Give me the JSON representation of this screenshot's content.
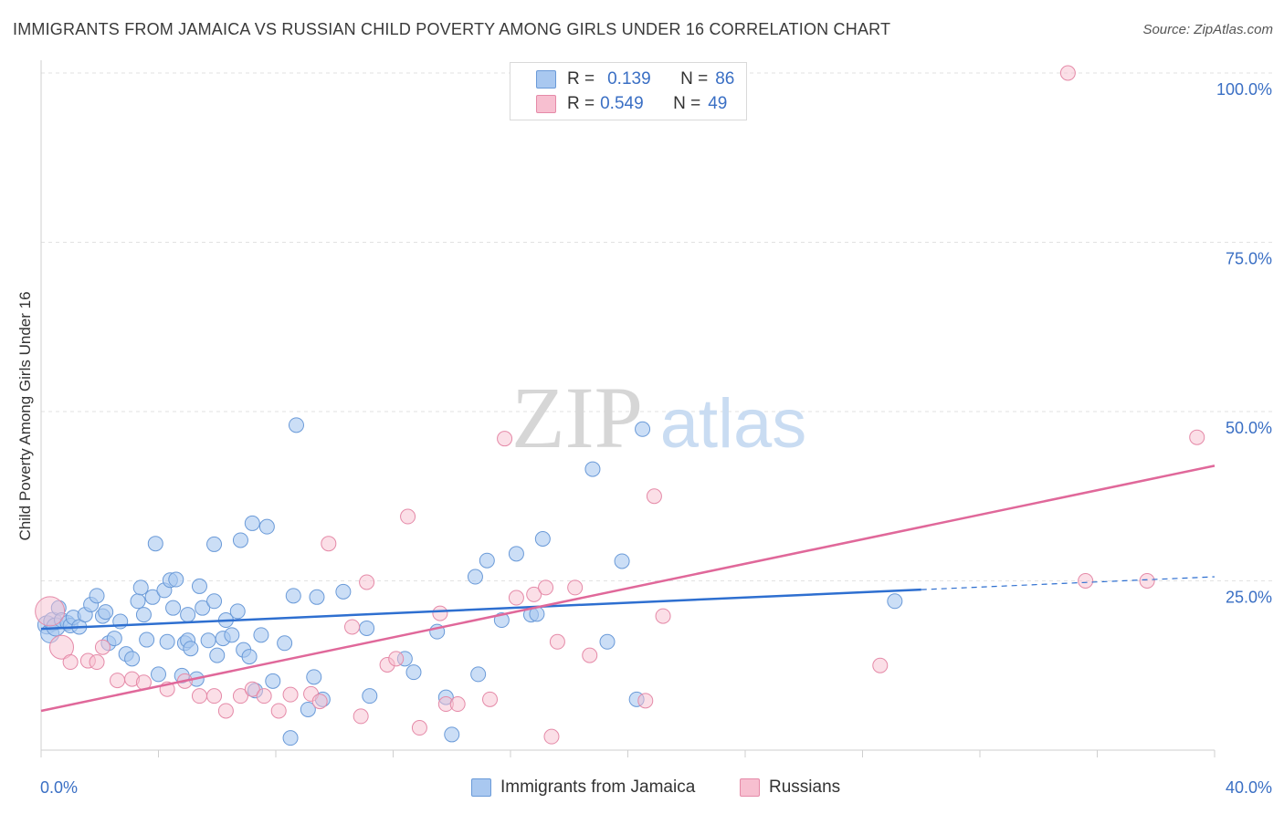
{
  "header": {
    "title": "IMMIGRANTS FROM JAMAICA VS RUSSIAN CHILD POVERTY AMONG GIRLS UNDER 16 CORRELATION CHART",
    "source": "Source: ZipAtlas.com"
  },
  "watermark": {
    "part1": "ZIP",
    "part2": "atlas"
  },
  "legend": {
    "row1": {
      "r_label": "R =",
      "r_value": "0.139",
      "n_label": "N =",
      "n_value": "86"
    },
    "row2": {
      "r_label": "R =",
      "r_value": "0.549",
      "n_label": "N =",
      "n_value": "49"
    }
  },
  "colors": {
    "blue_fill": "#a9c8f0",
    "blue_stroke": "#6a9ad8",
    "blue_line": "#2e6fd0",
    "pink_fill": "#f7bfd0",
    "pink_stroke": "#e58aa8",
    "pink_line": "#e0689a",
    "tick_text": "#3a6fc4",
    "grid": "#e2e2e2"
  },
  "chart_data": {
    "type": "scatter",
    "title": "IMMIGRANTS FROM JAMAICA VS RUSSIAN CHILD POVERTY AMONG GIRLS UNDER 16 CORRELATION CHART",
    "xlabel": "",
    "ylabel": "Child Poverty Among Girls Under 16",
    "xlim": [
      0,
      40
    ],
    "ylim": [
      0,
      100
    ],
    "x_tick_labels": [
      "0.0%",
      "40.0%"
    ],
    "y_ticks": [
      25,
      50,
      75,
      100
    ],
    "y_tick_labels": [
      "25.0%",
      "50.0%",
      "75.0%",
      "100.0%"
    ],
    "grid": true,
    "legend_position": "top-center",
    "series": [
      {
        "name": "Immigrants from Jamaica",
        "color": "#a9c8f0",
        "trend": {
          "x": [
            0,
            30
          ],
          "y": [
            17.9,
            23.7
          ],
          "dashed_to": {
            "x": 40,
            "y": 25.6
          }
        },
        "points": [
          [
            0.2,
            18.5
          ],
          [
            0.3,
            17.2
          ],
          [
            0.4,
            19.0
          ],
          [
            0.5,
            18.2
          ],
          [
            0.6,
            21.0
          ],
          [
            0.7,
            19.2
          ],
          [
            0.9,
            18.8
          ],
          [
            1.0,
            18.4
          ],
          [
            1.1,
            19.6
          ],
          [
            1.3,
            18.2
          ],
          [
            1.5,
            20.0
          ],
          [
            1.7,
            21.5
          ],
          [
            1.9,
            22.8
          ],
          [
            2.1,
            19.8
          ],
          [
            2.2,
            20.4
          ],
          [
            2.3,
            15.8
          ],
          [
            2.5,
            16.5
          ],
          [
            2.7,
            19.0
          ],
          [
            2.9,
            14.2
          ],
          [
            3.1,
            13.5
          ],
          [
            3.3,
            22.0
          ],
          [
            3.4,
            24.0
          ],
          [
            3.5,
            20.0
          ],
          [
            3.6,
            16.3
          ],
          [
            3.8,
            22.6
          ],
          [
            3.9,
            30.5
          ],
          [
            4.0,
            11.2
          ],
          [
            4.2,
            23.6
          ],
          [
            4.3,
            16.0
          ],
          [
            4.4,
            25.1
          ],
          [
            4.5,
            21.0
          ],
          [
            4.6,
            25.2
          ],
          [
            4.8,
            11.0
          ],
          [
            4.9,
            15.8
          ],
          [
            5.0,
            16.2
          ],
          [
            5.1,
            15.0
          ],
          [
            5.3,
            10.5
          ],
          [
            5.4,
            24.2
          ],
          [
            5.5,
            21.0
          ],
          [
            5.7,
            16.2
          ],
          [
            5.9,
            30.4
          ],
          [
            5.9,
            22.0
          ],
          [
            6.0,
            14.0
          ],
          [
            6.2,
            16.5
          ],
          [
            6.3,
            19.2
          ],
          [
            6.5,
            17.0
          ],
          [
            6.7,
            20.5
          ],
          [
            6.8,
            31.0
          ],
          [
            6.9,
            14.8
          ],
          [
            7.1,
            13.8
          ],
          [
            7.2,
            33.5
          ],
          [
            7.3,
            8.8
          ],
          [
            7.5,
            17.0
          ],
          [
            7.7,
            33.0
          ],
          [
            7.9,
            10.2
          ],
          [
            8.3,
            15.8
          ],
          [
            8.5,
            1.8
          ],
          [
            8.6,
            22.8
          ],
          [
            8.7,
            48.0
          ],
          [
            9.1,
            6.0
          ],
          [
            9.3,
            10.8
          ],
          [
            9.4,
            22.6
          ],
          [
            9.6,
            7.5
          ],
          [
            10.3,
            23.4
          ],
          [
            11.1,
            18.0
          ],
          [
            11.2,
            8.0
          ],
          [
            12.4,
            13.5
          ],
          [
            12.7,
            11.5
          ],
          [
            13.5,
            17.5
          ],
          [
            13.8,
            7.8
          ],
          [
            14.0,
            2.3
          ],
          [
            14.8,
            25.6
          ],
          [
            15.2,
            28.0
          ],
          [
            15.7,
            19.2
          ],
          [
            16.2,
            29.0
          ],
          [
            16.7,
            20.0
          ],
          [
            16.9,
            20.1
          ],
          [
            17.1,
            31.2
          ],
          [
            18.8,
            41.5
          ],
          [
            19.3,
            16.0
          ],
          [
            19.8,
            27.9
          ],
          [
            20.3,
            7.5
          ],
          [
            20.5,
            47.4
          ],
          [
            29.1,
            22.0
          ],
          [
            14.9,
            11.2
          ],
          [
            5.0,
            20.0
          ]
        ]
      },
      {
        "name": "Russians",
        "color": "#f7bfd0",
        "trend": {
          "x": [
            0,
            40
          ],
          "y": [
            5.8,
            42.0
          ]
        },
        "points": [
          [
            0.3,
            20.5
          ],
          [
            0.7,
            15.2
          ],
          [
            1.0,
            13.0
          ],
          [
            1.6,
            13.2
          ],
          [
            2.1,
            15.2
          ],
          [
            2.6,
            10.3
          ],
          [
            3.1,
            10.5
          ],
          [
            3.5,
            10.0
          ],
          [
            4.3,
            9.0
          ],
          [
            4.9,
            10.2
          ],
          [
            5.4,
            8.0
          ],
          [
            5.9,
            8.0
          ],
          [
            6.3,
            5.8
          ],
          [
            6.8,
            8.0
          ],
          [
            7.2,
            9.0
          ],
          [
            7.6,
            8.0
          ],
          [
            8.1,
            5.8
          ],
          [
            8.5,
            8.2
          ],
          [
            9.2,
            8.3
          ],
          [
            9.5,
            7.2
          ],
          [
            9.8,
            30.5
          ],
          [
            10.6,
            18.2
          ],
          [
            10.9,
            5.0
          ],
          [
            11.1,
            24.8
          ],
          [
            11.8,
            12.6
          ],
          [
            12.1,
            13.5
          ],
          [
            12.5,
            34.5
          ],
          [
            12.9,
            3.3
          ],
          [
            13.6,
            20.2
          ],
          [
            13.8,
            6.8
          ],
          [
            14.2,
            6.8
          ],
          [
            15.3,
            7.5
          ],
          [
            15.8,
            46.0
          ],
          [
            16.2,
            22.5
          ],
          [
            16.8,
            23.0
          ],
          [
            17.2,
            24.0
          ],
          [
            17.4,
            2.0
          ],
          [
            17.6,
            16.0
          ],
          [
            18.2,
            24.0
          ],
          [
            18.7,
            14.0
          ],
          [
            20.6,
            7.3
          ],
          [
            20.9,
            37.5
          ],
          [
            21.2,
            19.8
          ],
          [
            28.6,
            12.5
          ],
          [
            35.0,
            100.0
          ],
          [
            35.6,
            25.0
          ],
          [
            37.7,
            25.0
          ],
          [
            39.4,
            46.2
          ],
          [
            1.9,
            13.0
          ]
        ]
      }
    ]
  },
  "bottom_legend": {
    "item1": "Immigrants from Jamaica",
    "item2": "Russians"
  }
}
